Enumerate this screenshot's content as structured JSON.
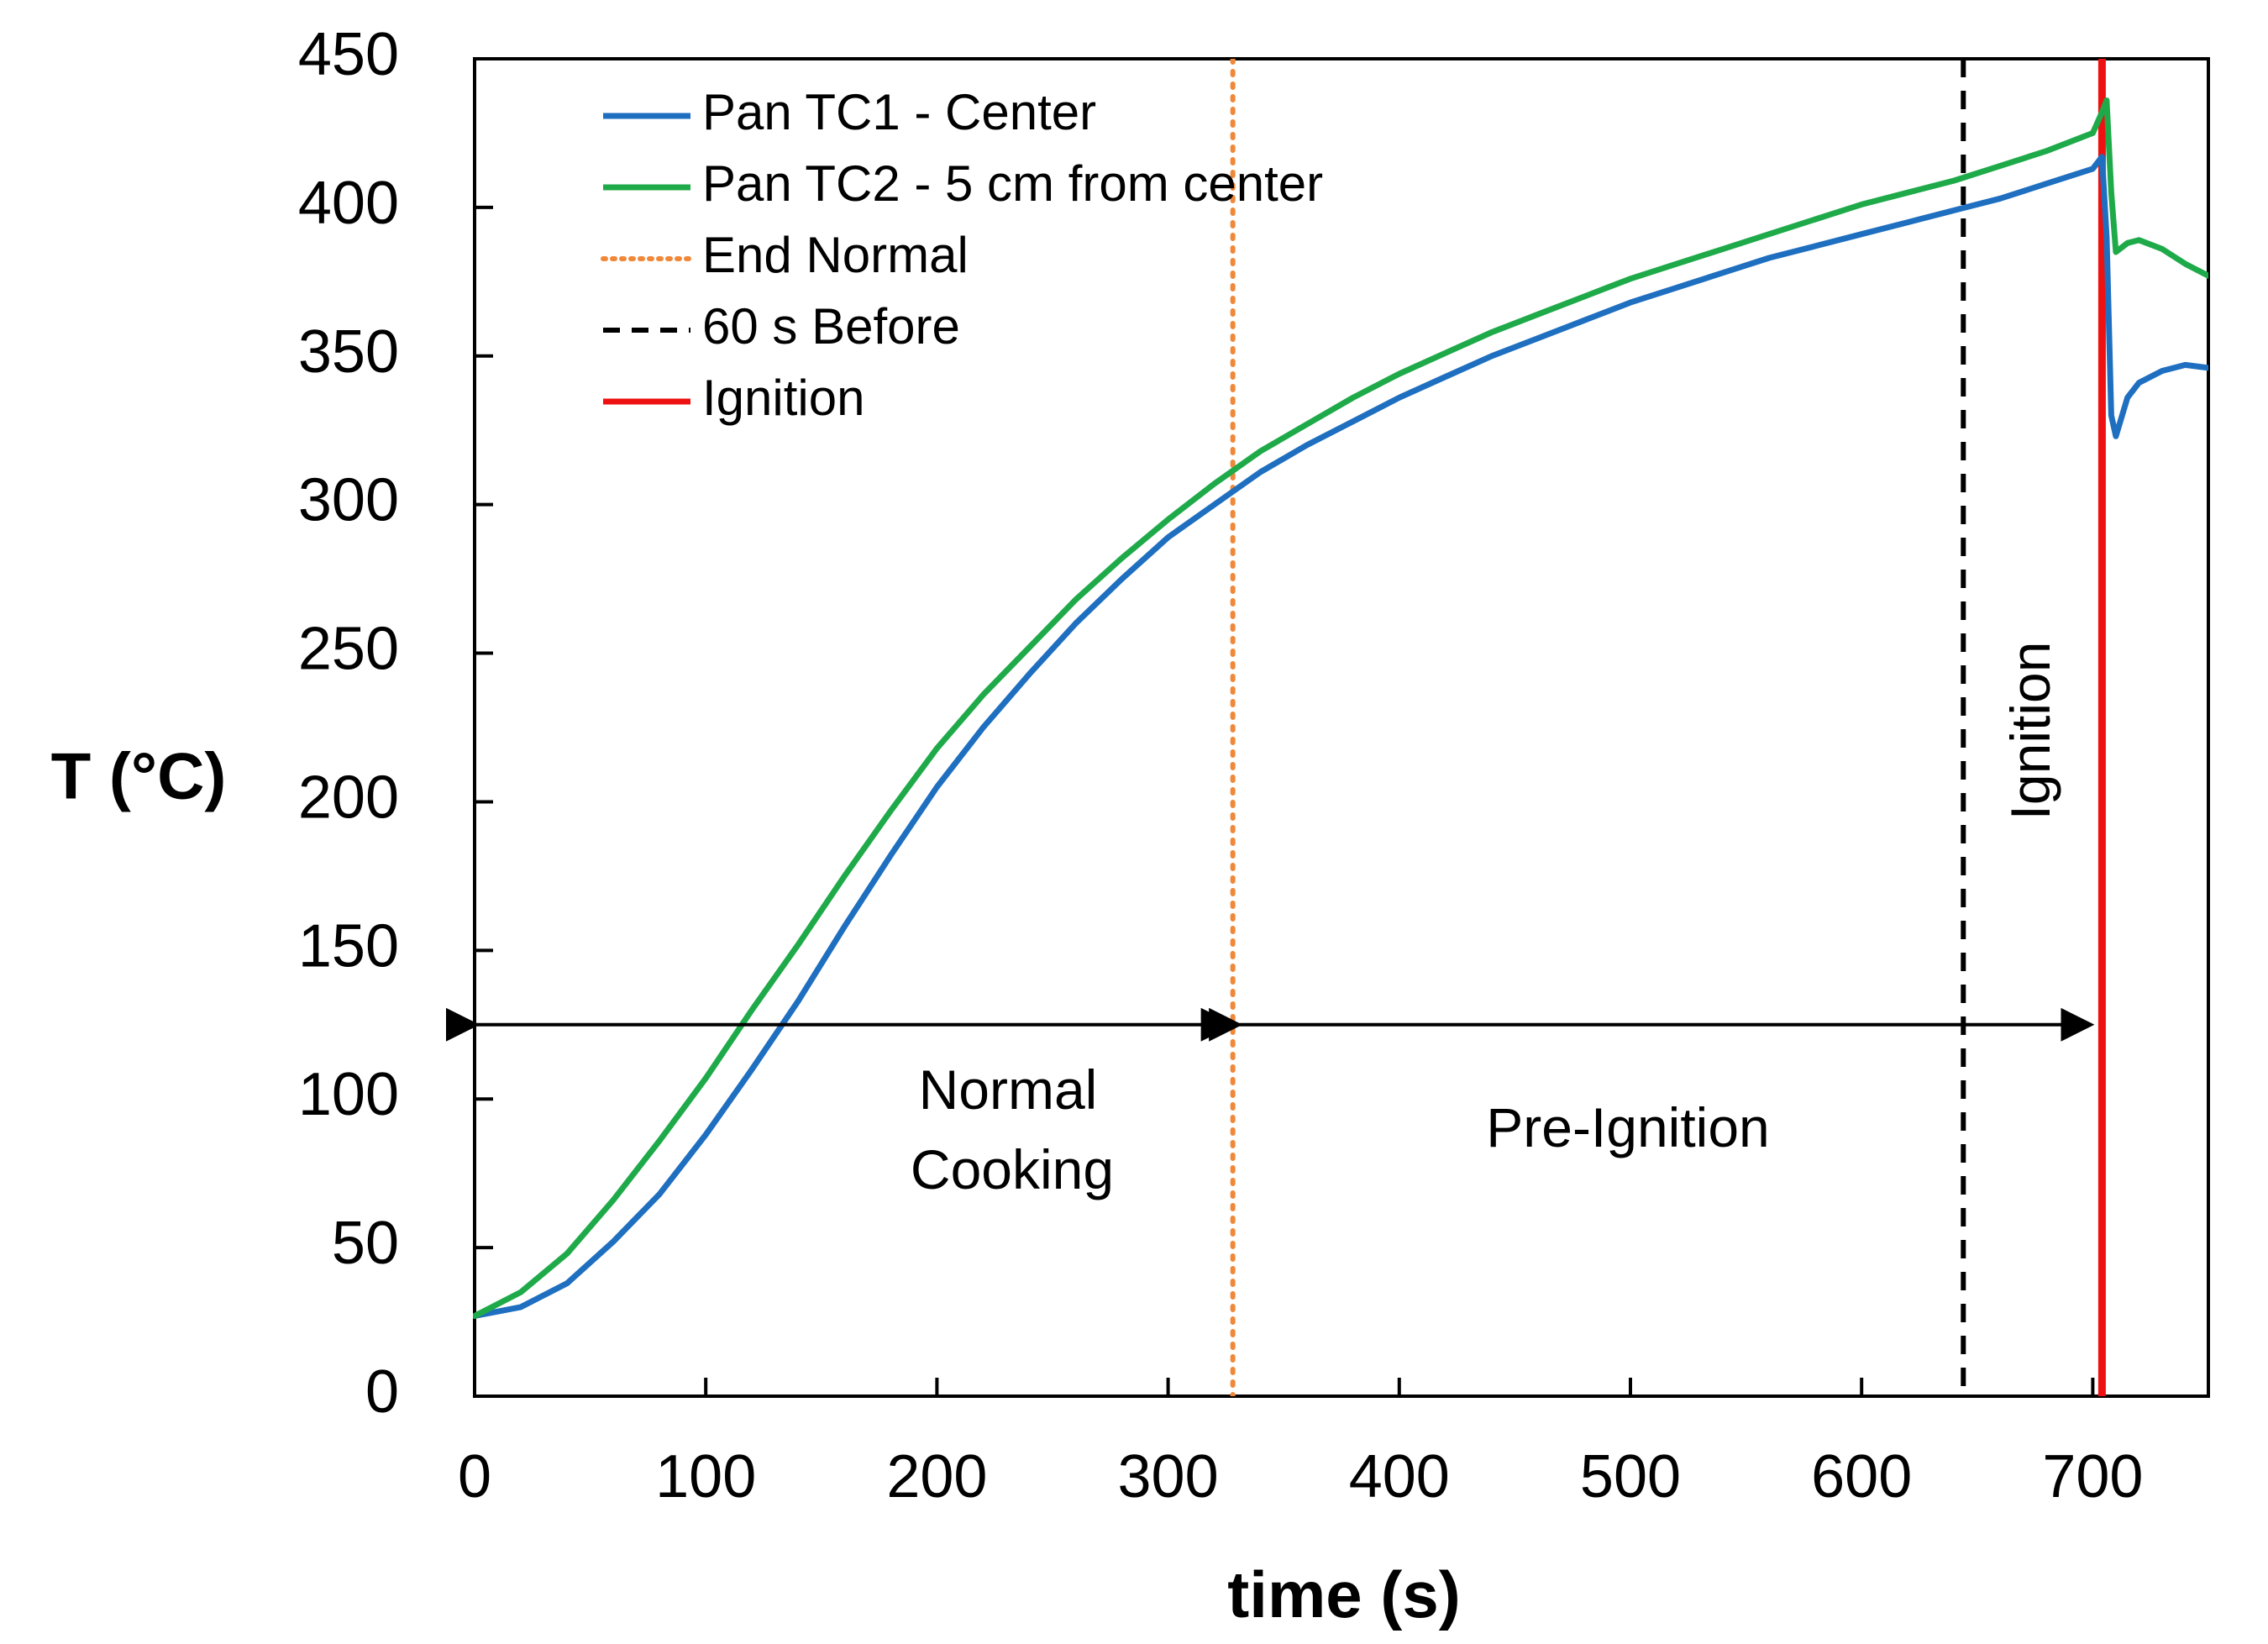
{
  "chart_data": {
    "type": "line",
    "title": "",
    "xlabel": "time (s)",
    "ylabel": "T (°C)",
    "xlim": [
      0,
      750
    ],
    "ylim": [
      0,
      450
    ],
    "xticks": [
      0,
      100,
      200,
      300,
      400,
      500,
      600,
      700
    ],
    "yticks": [
      0,
      50,
      100,
      150,
      200,
      250,
      300,
      350,
      400,
      450
    ],
    "grid": false,
    "legend_position": "top-left",
    "series": [
      {
        "name": "Pan TC1 - Center",
        "color": "#1f6fc0",
        "style": "solid",
        "x": [
          0,
          20,
          40,
          60,
          80,
          100,
          120,
          140,
          160,
          180,
          200,
          220,
          240,
          260,
          280,
          300,
          320,
          340,
          360,
          380,
          400,
          420,
          440,
          460,
          480,
          500,
          520,
          540,
          560,
          580,
          600,
          620,
          640,
          660,
          680,
          700,
          704,
          706,
          708,
          710,
          715,
          720,
          730,
          740,
          750
        ],
        "y": [
          27,
          30,
          38,
          52,
          68,
          88,
          110,
          133,
          158,
          182,
          205,
          225,
          243,
          260,
          275,
          289,
          300,
          311,
          320,
          328,
          336,
          343,
          350,
          356,
          362,
          368,
          373,
          378,
          383,
          387,
          391,
          395,
          399,
          403,
          408,
          413,
          417,
          390,
          330,
          323,
          336,
          341,
          345,
          347,
          346
        ]
      },
      {
        "name": "Pan TC2 - 5 cm from center",
        "color": "#1faa4a",
        "style": "solid",
        "x": [
          0,
          20,
          40,
          60,
          80,
          100,
          120,
          140,
          160,
          180,
          200,
          220,
          240,
          260,
          280,
          300,
          320,
          340,
          360,
          380,
          400,
          420,
          440,
          460,
          480,
          500,
          520,
          540,
          560,
          580,
          600,
          620,
          640,
          660,
          680,
          700,
          704,
          706,
          708,
          710,
          715,
          720,
          730,
          740,
          750
        ],
        "y": [
          27,
          35,
          48,
          66,
          86,
          107,
          130,
          152,
          175,
          197,
          218,
          236,
          252,
          268,
          282,
          295,
          307,
          318,
          327,
          336,
          344,
          351,
          358,
          364,
          370,
          376,
          381,
          386,
          391,
          396,
          401,
          405,
          409,
          414,
          419,
          425,
          432,
          436,
          405,
          385,
          388,
          389,
          386,
          381,
          377
        ]
      }
    ],
    "vlines": [
      {
        "name": "End Normal",
        "x": 328,
        "color": "#f0883a",
        "style": "dotted"
      },
      {
        "name": "60 s Before",
        "x": 644,
        "color": "#000000",
        "style": "dashed"
      },
      {
        "name": "Ignition",
        "x": 704,
        "color": "#ee1111",
        "style": "solid"
      }
    ],
    "annotations": {
      "normal_cooking": {
        "lines": [
          "Normal",
          "Cooking"
        ],
        "x_start": 0,
        "x_end": 328,
        "y": 125
      },
      "pre_ignition": {
        "lines": [
          "Pre-Ignition"
        ],
        "x_start": 330,
        "x_end": 700,
        "y": 125
      },
      "ignition_label": {
        "text": "Ignition",
        "x": 683,
        "y": 250
      }
    }
  }
}
